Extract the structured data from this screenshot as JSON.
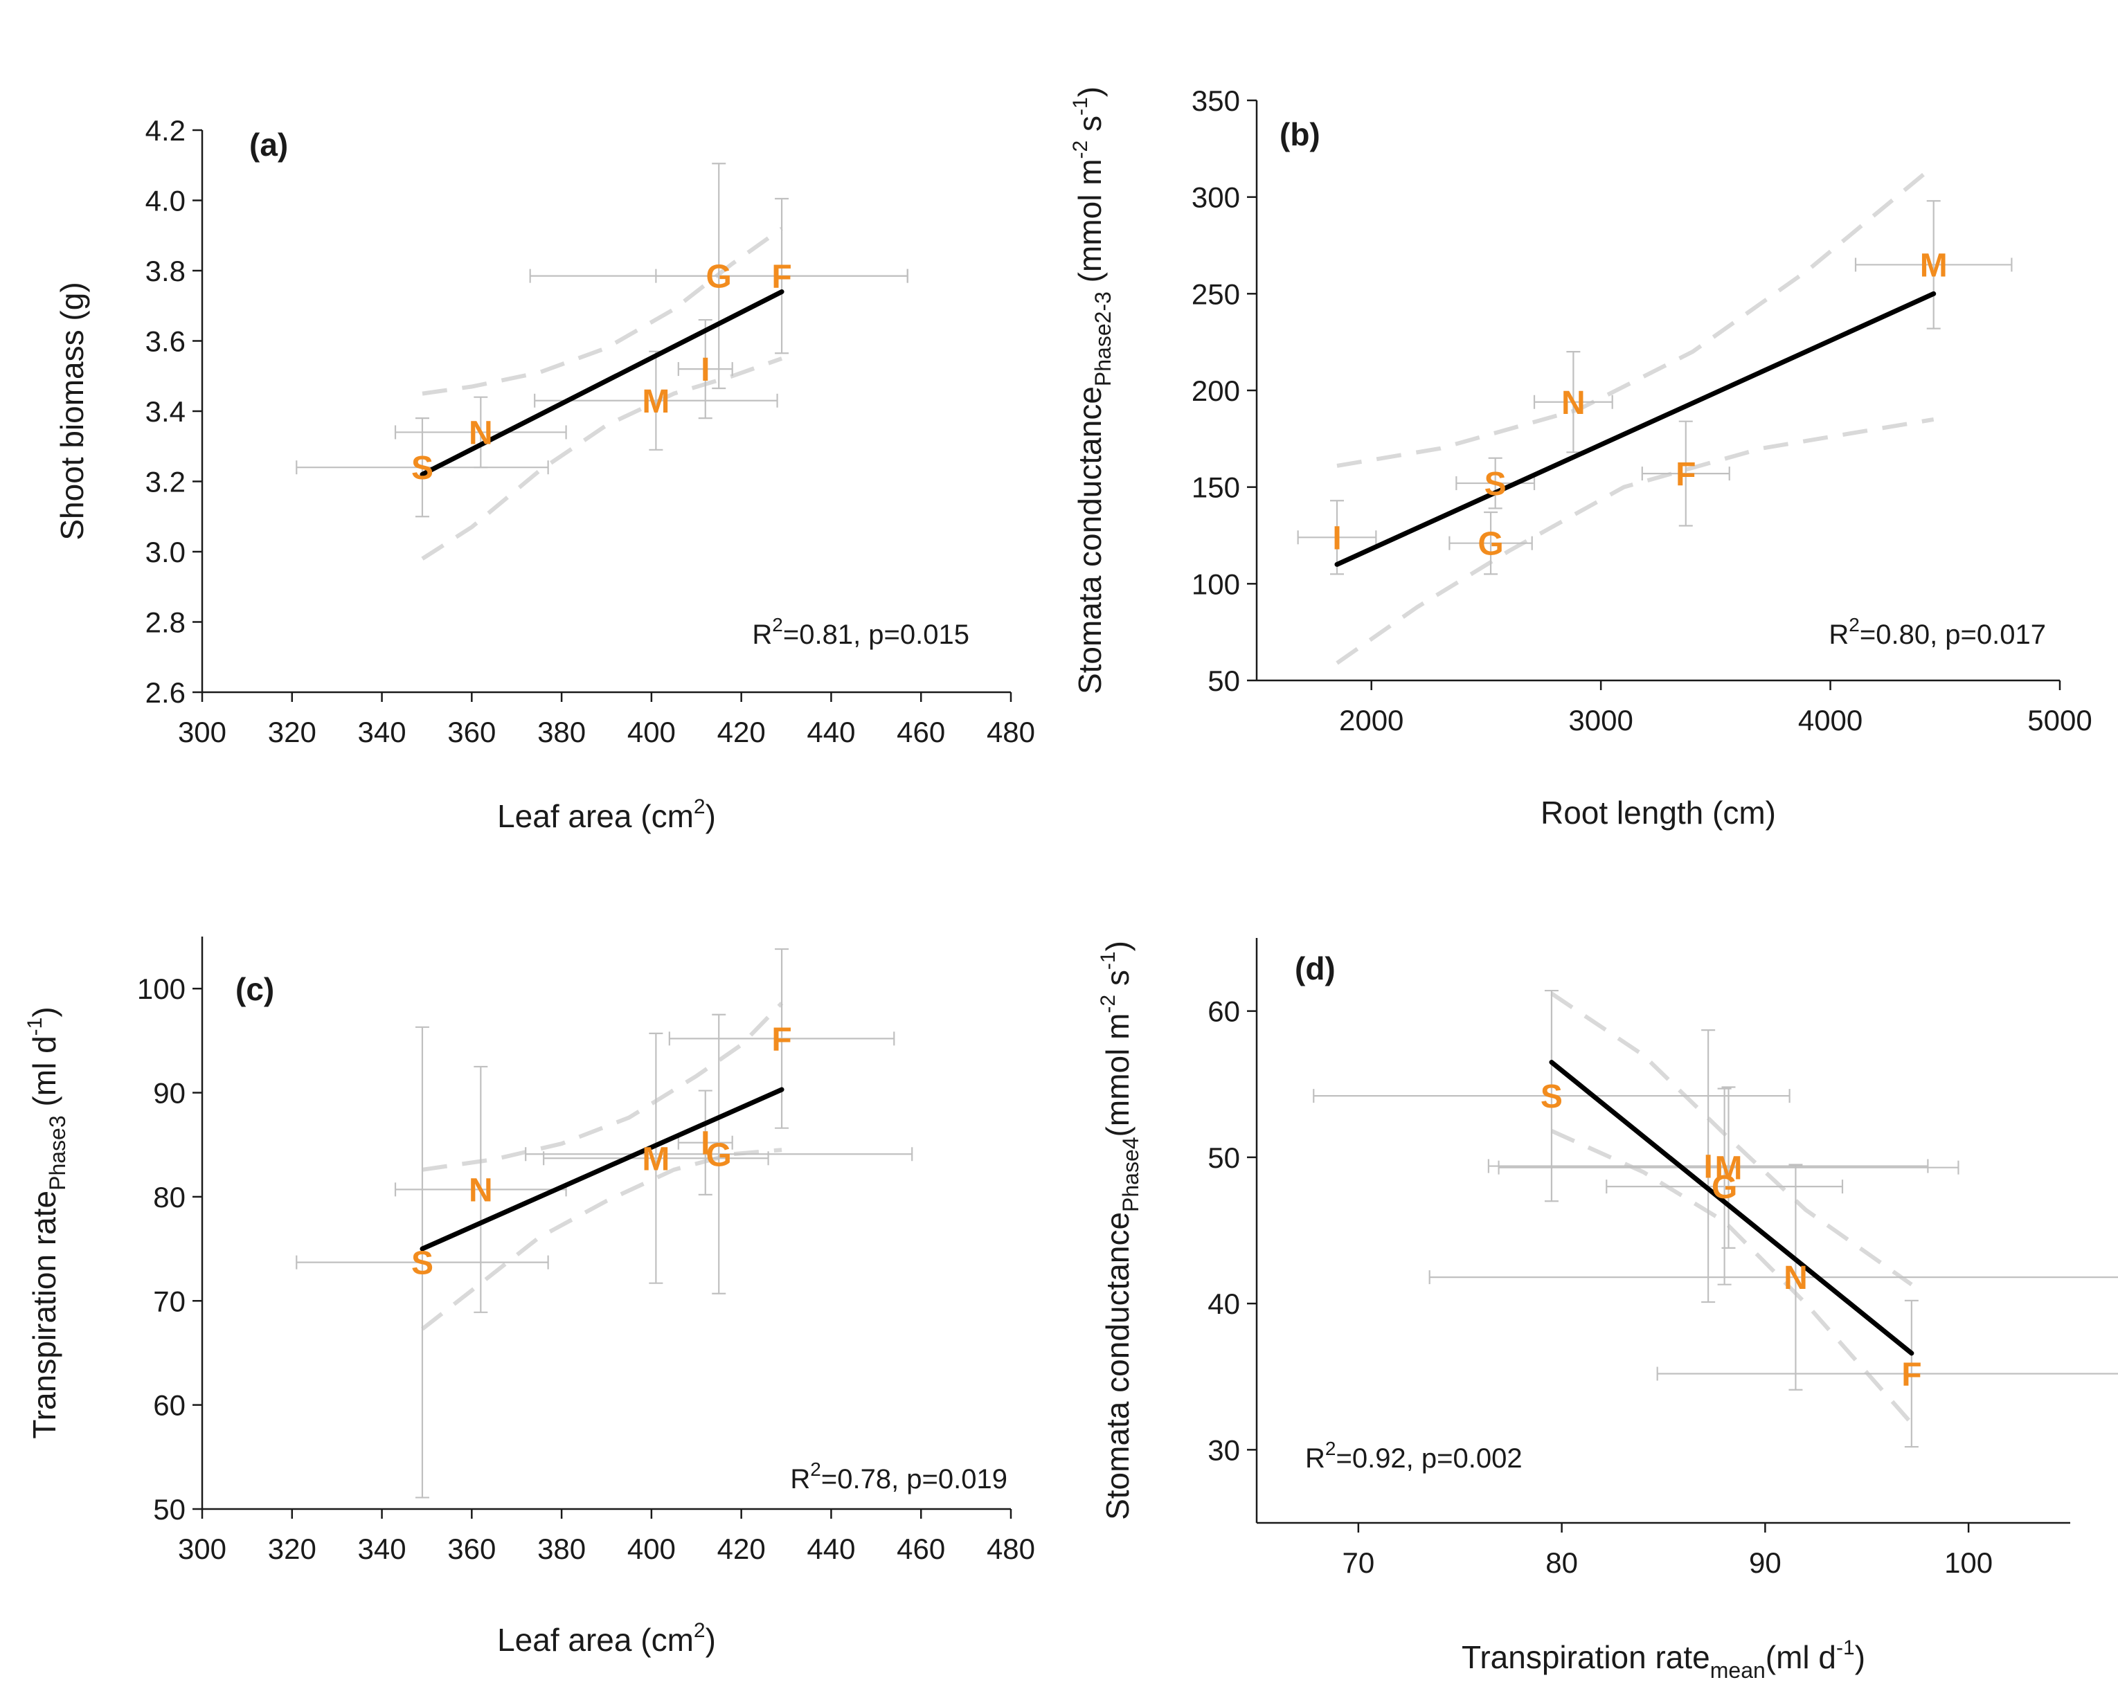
{
  "accent_color": "#f28c1e",
  "chart_data": [
    {
      "id": "a",
      "type": "scatter",
      "panel_label": "(a)",
      "xlabel": "Leaf area (cm",
      "xlabel_sup": "2",
      "xlabel_tail": ")",
      "ylabel": "Shoot biomass (g)",
      "xlim": [
        300,
        480
      ],
      "ylim": [
        2.6,
        4.2
      ],
      "xticks": [
        "300",
        "320",
        "340",
        "360",
        "380",
        "400",
        "420",
        "440",
        "460",
        "480"
      ],
      "yticks": [
        "2.6",
        "2.8",
        "3.0",
        "3.2",
        "3.4",
        "3.6",
        "3.8",
        "4.0",
        "4.2"
      ],
      "annotation": {
        "pre": "R",
        "sup": "2",
        "post": "=0.81, p=0.015",
        "position": "bottom-right"
      },
      "points": [
        {
          "label": "S",
          "x": 349,
          "y": 3.24,
          "xerr": 28,
          "yerr": 0.14
        },
        {
          "label": "N",
          "x": 362,
          "y": 3.34,
          "xerr": 19,
          "yerr": 0.1
        },
        {
          "label": "M",
          "x": 401,
          "y": 3.43,
          "xerr": 27,
          "yerr": 0.14
        },
        {
          "label": "I",
          "x": 412,
          "y": 3.52,
          "xerr": 6,
          "yerr": 0.14
        },
        {
          "label": "G",
          "x": 415,
          "y": 3.785,
          "xerr": 42,
          "yerr": 0.32
        },
        {
          "label": "F",
          "x": 429,
          "y": 3.785,
          "xerr": 28,
          "yerr": 0.22
        }
      ],
      "fit": [
        [
          349,
          3.22
        ],
        [
          429,
          3.74
        ]
      ],
      "ci_upper": [
        [
          349,
          3.45
        ],
        [
          360,
          3.47
        ],
        [
          375,
          3.51
        ],
        [
          390,
          3.58
        ],
        [
          405,
          3.69
        ],
        [
          418,
          3.82
        ],
        [
          429,
          3.92
        ]
      ],
      "ci_lower": [
        [
          349,
          2.98
        ],
        [
          360,
          3.07
        ],
        [
          375,
          3.23
        ],
        [
          390,
          3.36
        ],
        [
          405,
          3.45
        ],
        [
          418,
          3.5
        ],
        [
          429,
          3.55
        ]
      ]
    },
    {
      "id": "b",
      "type": "scatter",
      "panel_label": "(b)",
      "xlabel": "Root length (cm)",
      "ylabel": "Stomata conductance",
      "ylabel_sub": "Phase2-3",
      "ylabel_tail": " (mmol m",
      "ylabel_sup1": "-2",
      "ylabel_tail2": " s",
      "ylabel_sup2": "-1",
      "ylabel_tail3": ")",
      "xlim": [
        1500,
        5000
      ],
      "ylim": [
        50,
        350
      ],
      "xticks": [
        "2000",
        "3000",
        "4000",
        "5000"
      ],
      "xtick_values": [
        2000,
        3000,
        4000,
        5000
      ],
      "yticks": [
        "50",
        "100",
        "150",
        "200",
        "250",
        "300",
        "350"
      ],
      "annotation": {
        "pre": "R",
        "sup": "2",
        "post": "=0.80, p=0.017",
        "position": "bottom-right"
      },
      "points": [
        {
          "label": "I",
          "x": 1850,
          "y": 124,
          "xerr": 170,
          "yerr": 19
        },
        {
          "label": "G",
          "x": 2520,
          "y": 121,
          "xerr": 180,
          "yerr": 16
        },
        {
          "label": "S",
          "x": 2540,
          "y": 152,
          "xerr": 170,
          "yerr": 13
        },
        {
          "label": "N",
          "x": 2880,
          "y": 194,
          "xerr": 170,
          "yerr": 26
        },
        {
          "label": "F",
          "x": 3370,
          "y": 157,
          "xerr": 190,
          "yerr": 27
        },
        {
          "label": "M",
          "x": 4450,
          "y": 265,
          "xerr": 340,
          "yerr": 33
        }
      ],
      "fit": [
        [
          1850,
          110
        ],
        [
          4450,
          250
        ]
      ],
      "ci_upper": [
        [
          1850,
          161
        ],
        [
          2300,
          170
        ],
        [
          2900,
          190
        ],
        [
          3400,
          220
        ],
        [
          3900,
          262
        ],
        [
          4450,
          316
        ]
      ],
      "ci_lower": [
        [
          1850,
          59
        ],
        [
          2200,
          88
        ],
        [
          2600,
          117
        ],
        [
          3100,
          150
        ],
        [
          3700,
          170
        ],
        [
          4450,
          185
        ]
      ]
    },
    {
      "id": "c",
      "type": "scatter",
      "panel_label": "(c)",
      "xlabel": "Leaf area (cm",
      "xlabel_sup": "2",
      "xlabel_tail": ")",
      "ylabel": "Transpiration rate",
      "ylabel_sub": "Phase3",
      "ylabel_tail": " (ml d",
      "ylabel_sup1": "-1",
      "ylabel_tail2": ")",
      "xlim": [
        300,
        480
      ],
      "ylim": [
        50,
        105
      ],
      "xticks": [
        "300",
        "320",
        "340",
        "360",
        "380",
        "400",
        "420",
        "440",
        "460",
        "480"
      ],
      "yticks": [
        "50",
        "60",
        "70",
        "80",
        "90",
        "100"
      ],
      "ytick_values": [
        50,
        60,
        70,
        80,
        90,
        100
      ],
      "annotation": {
        "pre": "R",
        "sup": "2",
        "post": "=0.78, p=0.019",
        "position": "bottom-right"
      },
      "points": [
        {
          "label": "S",
          "x": 349,
          "y": 73.7,
          "xerr": 28,
          "yerr": 22.6
        },
        {
          "label": "N",
          "x": 362,
          "y": 80.7,
          "xerr": 19,
          "yerr": 11.8
        },
        {
          "label": "M",
          "x": 401,
          "y": 83.7,
          "xerr": 25,
          "yerr": 12.0
        },
        {
          "label": "I",
          "x": 412,
          "y": 85.2,
          "xerr": 6,
          "yerr": 5.0
        },
        {
          "label": "G",
          "x": 415,
          "y": 84.1,
          "xerr": 43,
          "yerr": 13.4
        },
        {
          "label": "F",
          "x": 429,
          "y": 95.2,
          "xerr": 25,
          "yerr": 8.6
        }
      ],
      "fit": [
        [
          349,
          75.0
        ],
        [
          429,
          90.3
        ]
      ],
      "ci_upper": [
        [
          349,
          82.6
        ],
        [
          365,
          83.6
        ],
        [
          380,
          85.1
        ],
        [
          395,
          87.6
        ],
        [
          410,
          91.6
        ],
        [
          420,
          94.6
        ],
        [
          429,
          98.6
        ]
      ],
      "ci_lower": [
        [
          349,
          67.3
        ],
        [
          360,
          71.0
        ],
        [
          375,
          76.1
        ],
        [
          390,
          79.6
        ],
        [
          405,
          82.6
        ],
        [
          418,
          84.1
        ],
        [
          429,
          84.5
        ]
      ]
    },
    {
      "id": "d",
      "type": "scatter",
      "panel_label": "(d)",
      "xlabel": "Transpiration rate",
      "xlabel_sub": "mean",
      "xlabel_tail": "(ml d",
      "xlabel_sup": "-1",
      "xlabel_tail2": ")",
      "ylabel": "Stomata conductance",
      "ylabel_sub": "Phase4",
      "ylabel_tail": "(mmol m",
      "ylabel_sup1": "-2",
      "ylabel_tail2": " s",
      "ylabel_sup2": "-1",
      "ylabel_tail3": ")",
      "xlim": [
        65,
        105
      ],
      "ylim": [
        25,
        65
      ],
      "xticks": [
        "70",
        "80",
        "90",
        "100"
      ],
      "xtick_values": [
        70,
        80,
        90,
        100
      ],
      "yticks": [
        "30",
        "40",
        "50",
        "60"
      ],
      "ytick_values": [
        30,
        40,
        50,
        60
      ],
      "annotation": {
        "pre": "R",
        "sup": "2",
        "post": "=0.92, p=0.002",
        "position": "bottom-left"
      },
      "points": [
        {
          "label": "S",
          "x": 79.5,
          "y": 54.2,
          "xerr": 11.7,
          "yerr": 7.2
        },
        {
          "label": "I",
          "x": 87.2,
          "y": 49.4,
          "xerr": 10.8,
          "yerr": 9.3
        },
        {
          "label": "M",
          "x": 88.2,
          "y": 49.3,
          "xerr": 11.3,
          "yerr": 5.5
        },
        {
          "label": "G",
          "x": 88.0,
          "y": 48.0,
          "xerr": 5.8,
          "yerr": 6.7
        },
        {
          "label": "N",
          "x": 91.5,
          "y": 41.8,
          "xerr": 18.0,
          "yerr": 7.7
        },
        {
          "label": "F",
          "x": 97.2,
          "y": 35.2,
          "xerr": 12.5,
          "yerr": 5.0
        }
      ],
      "fit": [
        [
          79.5,
          56.5
        ],
        [
          97.2,
          36.6
        ]
      ],
      "ci_upper": [
        [
          79.5,
          61.2
        ],
        [
          84,
          57.0
        ],
        [
          88,
          51.6
        ],
        [
          92,
          46.4
        ],
        [
          97.2,
          41.3
        ]
      ],
      "ci_lower": [
        [
          79.5,
          51.8
        ],
        [
          84,
          49.0
        ],
        [
          88,
          45.6
        ],
        [
          92,
          40.0
        ],
        [
          97.2,
          31.8
        ]
      ]
    }
  ]
}
